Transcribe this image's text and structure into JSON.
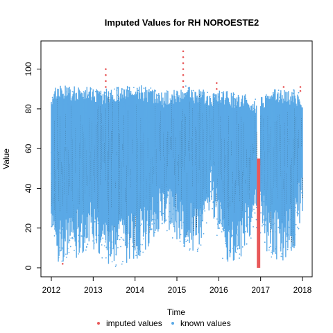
{
  "chart_data": {
    "type": "scatter",
    "title": "Imputed Values for  RH NOROESTE2",
    "xlabel": "Time",
    "ylabel": "Value",
    "xlim": [
      2012,
      2018
    ],
    "ylim": [
      0,
      110
    ],
    "x_ticks": [
      "2012",
      "2013",
      "2014",
      "2015",
      "2016",
      "2017",
      "2018"
    ],
    "y_ticks": [
      "0",
      "20",
      "40",
      "60",
      "80",
      "100"
    ],
    "grid": false,
    "legend_position": "bottom",
    "series": [
      {
        "name": "known values",
        "color": "#5aa9e6",
        "envelope": {
          "x": [
            2012.0,
            2012.15,
            2012.4,
            2012.6,
            2012.9,
            2013.2,
            2013.5,
            2013.8,
            2014.1,
            2014.4,
            2014.6,
            2014.9,
            2015.2,
            2015.5,
            2015.8,
            2016.1,
            2016.4,
            2016.7,
            2016.95,
            2017.2,
            2017.5,
            2017.8,
            2018.0
          ],
          "max": [
            88,
            93,
            92,
            92,
            91,
            90,
            91,
            92,
            92,
            91,
            88,
            90,
            92,
            90,
            89,
            90,
            88,
            88,
            85,
            90,
            90,
            90,
            88
          ],
          "min": [
            15,
            3,
            2,
            5,
            10,
            3,
            0,
            2,
            5,
            10,
            20,
            15,
            10,
            5,
            30,
            3,
            2,
            10,
            20,
            5,
            3,
            8,
            25
          ]
        }
      },
      {
        "name": "imputed values",
        "color": "#e8595a",
        "points": [
          {
            "x": 2012.27,
            "y": 2
          },
          {
            "x": 2013.3,
            "y": 100
          },
          {
            "x": 2013.3,
            "y": 97
          },
          {
            "x": 2013.3,
            "y": 94
          },
          {
            "x": 2013.3,
            "y": 91
          },
          {
            "x": 2015.15,
            "y": 109
          },
          {
            "x": 2015.15,
            "y": 106
          },
          {
            "x": 2015.15,
            "y": 103
          },
          {
            "x": 2015.15,
            "y": 100
          },
          {
            "x": 2015.15,
            "y": 97
          },
          {
            "x": 2015.15,
            "y": 94
          },
          {
            "x": 2015.15,
            "y": 91
          },
          {
            "x": 2015.95,
            "y": 93
          },
          {
            "x": 2015.95,
            "y": 90
          },
          {
            "x": 2017.55,
            "y": 91
          },
          {
            "x": 2017.95,
            "y": 91
          },
          {
            "x": 2017.95,
            "y": 89
          }
        ],
        "segment": {
          "x": 2016.95,
          "y_from": 0,
          "y_to": 55
        }
      }
    ]
  },
  "legend": [
    {
      "label": "imputed values",
      "color": "#e8595a"
    },
    {
      "label": "known values",
      "color": "#5aa9e6"
    }
  ]
}
